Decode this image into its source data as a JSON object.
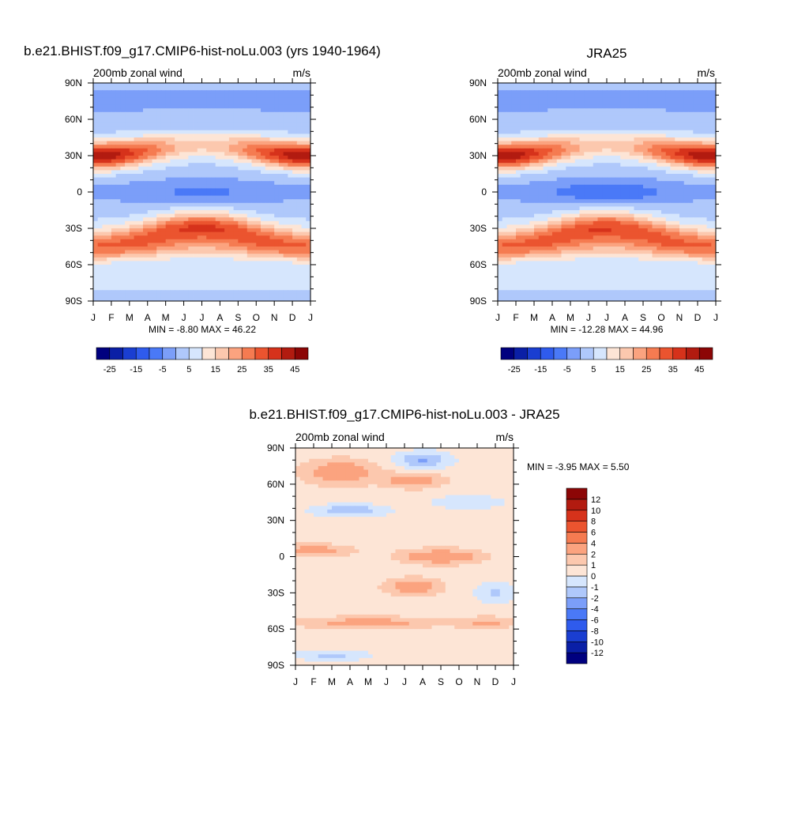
{
  "panels": [
    {
      "key": "model",
      "title": "b.e21.BHIST.f09_g17.CMIP6-hist-noLu.003 (yrs 1940-1964)",
      "left_label": "200mb zonal wind",
      "right_label": "m/s",
      "stats": "MIN =  -8.80 MAX =  46.22"
    },
    {
      "key": "obs",
      "title": "JRA25",
      "left_label": "200mb zonal wind",
      "right_label": "m/s",
      "stats": "MIN = -12.28 MAX =  44.96"
    },
    {
      "key": "diff",
      "title": "b.e21.BHIST.f09_g17.CMIP6-hist-noLu.003 - JRA25",
      "left_label": "200mb zonal wind",
      "right_label": "m/s",
      "stats": "MIN =  -3.95 MAX =   5.50"
    }
  ],
  "chart_data": [
    {
      "type": "heatmap",
      "name_key": "model",
      "x_ticks": [
        "J",
        "F",
        "M",
        "A",
        "M",
        "J",
        "J",
        "A",
        "S",
        "O",
        "N",
        "D",
        "J"
      ],
      "y_ticks": [
        "90N",
        "60N",
        "30N",
        "0",
        "30S",
        "60S",
        "90S"
      ],
      "y_range": [
        -90,
        90
      ],
      "levels": [
        -30,
        -25,
        -20,
        -15,
        -10,
        -5,
        0,
        5,
        10,
        15,
        20,
        25,
        30,
        35,
        40,
        45,
        50
      ],
      "colorbar_labels": [
        "-25",
        "-15",
        "-5",
        "5",
        "15",
        "25",
        "35",
        "45"
      ],
      "colors": [
        "#00007f",
        "#0a1fa6",
        "#1a3ed1",
        "#2f5bed",
        "#4a79f7",
        "#7b9ef9",
        "#afc8fb",
        "#d6e6fd",
        "#fde5d6",
        "#fcc8ae",
        "#fba37f",
        "#f57b51",
        "#eb542f",
        "#d6321b",
        "#b21b10",
        "#8c0606"
      ],
      "stats": {
        "min": -8.8,
        "max": 46.22
      }
    },
    {
      "type": "heatmap",
      "name_key": "obs",
      "x_ticks": [
        "J",
        "F",
        "M",
        "A",
        "M",
        "J",
        "J",
        "A",
        "S",
        "O",
        "N",
        "D",
        "J"
      ],
      "y_ticks": [
        "90N",
        "60N",
        "30N",
        "0",
        "30S",
        "60S",
        "90S"
      ],
      "y_range": [
        -90,
        90
      ],
      "levels": [
        -30,
        -25,
        -20,
        -15,
        -10,
        -5,
        0,
        5,
        10,
        15,
        20,
        25,
        30,
        35,
        40,
        45,
        50
      ],
      "colorbar_labels": [
        "-25",
        "-15",
        "-5",
        "5",
        "15",
        "25",
        "35",
        "45"
      ],
      "colors": [
        "#00007f",
        "#0a1fa6",
        "#1a3ed1",
        "#2f5bed",
        "#4a79f7",
        "#7b9ef9",
        "#afc8fb",
        "#d6e6fd",
        "#fde5d6",
        "#fcc8ae",
        "#fba37f",
        "#f57b51",
        "#eb542f",
        "#d6321b",
        "#b21b10",
        "#8c0606"
      ],
      "stats": {
        "min": -12.28,
        "max": 44.96
      }
    },
    {
      "type": "heatmap",
      "name_key": "diff",
      "x_ticks": [
        "J",
        "F",
        "M",
        "A",
        "M",
        "J",
        "J",
        "A",
        "S",
        "O",
        "N",
        "D",
        "J"
      ],
      "y_ticks": [
        "90N",
        "60N",
        "30N",
        "0",
        "30S",
        "60S",
        "90S"
      ],
      "y_range": [
        -90,
        90
      ],
      "levels": [
        -14,
        -12,
        -10,
        -8,
        -6,
        -4,
        -2,
        -1,
        0,
        1,
        2,
        4,
        6,
        8,
        10,
        12,
        14
      ],
      "colorbar_labels": [
        "12",
        "10",
        "8",
        "6",
        "4",
        "2",
        "1",
        "0",
        "-1",
        "-2",
        "-4",
        "-6",
        "-8",
        "-10",
        "-12"
      ],
      "colors": [
        "#00007f",
        "#0a1fa6",
        "#1a3ed1",
        "#2f5bed",
        "#4a79f7",
        "#7b9ef9",
        "#afc8fb",
        "#d6e6fd",
        "#fde5d6",
        "#fcc8ae",
        "#fba37f",
        "#f57b51",
        "#eb542f",
        "#d6321b",
        "#b21b10",
        "#8c0606"
      ],
      "stats": {
        "min": -3.95,
        "max": 5.5
      }
    }
  ]
}
